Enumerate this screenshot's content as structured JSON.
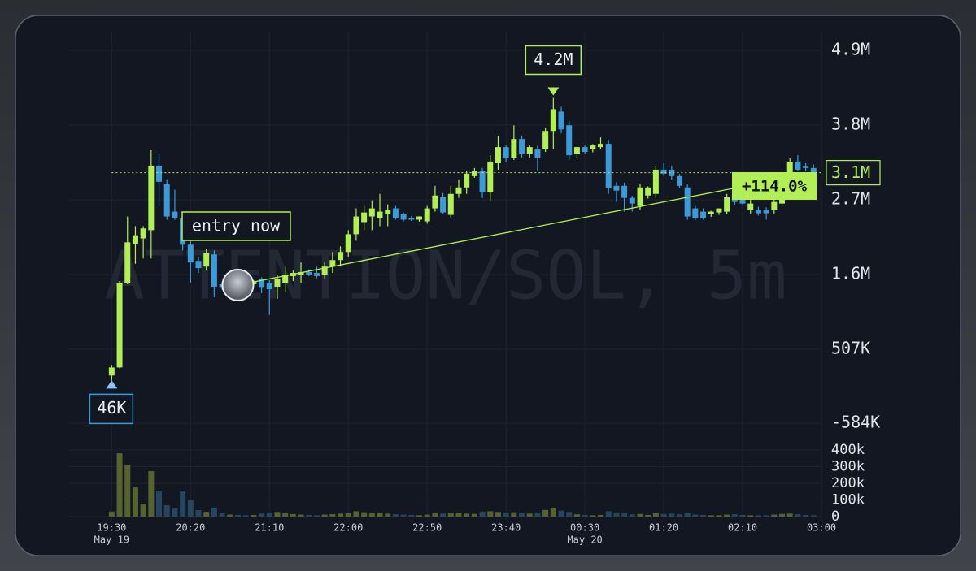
{
  "chart_data": {
    "type": "candlestick",
    "watermark": "ATTENTION/SOL, 5m",
    "up_color": "#b2ee55",
    "down_color": "#3d9ad8",
    "volume_up_color": "#56632e",
    "volume_down_color": "#264660",
    "open": [
      119000,
      237000,
      1483000,
      2050000,
      2134000,
      2255000,
      3204000,
      2930000,
      2527000,
      2432000,
      2041000,
      1803000,
      1720000,
      1898000,
      1460000,
      1420000,
      1480000,
      1540000,
      1460000,
      1540000,
      1483000,
      1424000,
      1483000,
      1580000,
      1602000,
      1638000,
      1626000,
      1602000,
      1720000,
      1815000,
      1934000,
      2195000,
      2373000,
      2456000,
      2432000,
      2491000,
      2575000,
      2491000,
      2432000,
      2409000,
      2385000,
      2575000,
      2740000,
      2480000,
      2788000,
      2883000,
      3049000,
      3121000,
      2812000,
      3239000,
      3476000,
      3322000,
      3595000,
      3381000,
      3441000,
      3441000,
      3714000,
      3998000,
      3797000,
      3381000,
      3476000,
      3441000,
      3476000,
      3524000,
      2907000,
      2907000,
      2729000,
      2610000,
      2764000,
      2788000,
      3144000,
      3144000,
      3049000,
      2883000,
      2575000,
      2527000,
      2491000,
      2515000,
      2527000,
      2788000,
      2741000,
      2551000,
      2551000,
      2551000,
      2551000,
      2646000,
      3025000,
      3263000,
      3200000,
      3168000
    ],
    "high": [
      273000,
      1507000,
      2456000,
      2314000,
      2314000,
      3429000,
      3381000,
      3002000,
      2848000,
      2527000,
      2100000,
      1863000,
      1981000,
      1958000,
      1490000,
      1500000,
      1500000,
      1560000,
      1520000,
      1560000,
      1520000,
      1602000,
      1720000,
      1661000,
      1780000,
      1680000,
      1720000,
      1780000,
      1934000,
      2017000,
      2255000,
      2575000,
      2610000,
      2693000,
      2788000,
      2634000,
      2610000,
      2515000,
      2460000,
      2460000,
      2610000,
      2907000,
      2800000,
      2907000,
      3002000,
      3121000,
      3168000,
      3168000,
      3357000,
      3642000,
      3500000,
      3797000,
      3642000,
      3500000,
      3500000,
      3761000,
      4200000,
      4069000,
      3856000,
      3480000,
      3500000,
      3520000,
      3619000,
      3583000,
      2960000,
      2955000,
      2760000,
      2931000,
      2900000,
      3204000,
      3240000,
      3204000,
      3080000,
      2931000,
      2610000,
      2575000,
      2540000,
      2560000,
      2788000,
      2848000,
      2812000,
      2700000,
      2600000,
      2590000,
      2717000,
      2907000,
      3310000,
      3357000,
      3240000,
      3220000
    ],
    "low": [
      46000,
      225000,
      1459000,
      1760000,
      1839000,
      1839000,
      2610000,
      2409000,
      2409000,
      1958000,
      1483000,
      1626000,
      1661000,
      1270000,
      1380000,
      1400000,
      1410000,
      1430000,
      1440000,
      1330000,
      1009000,
      1246000,
      1341000,
      1507000,
      1483000,
      1580000,
      1550000,
      1543000,
      1626000,
      1720000,
      1863000,
      2100000,
      2255000,
      2255000,
      2314000,
      2314000,
      2409000,
      2385000,
      2390000,
      2380000,
      2350000,
      2527000,
      2500000,
      2440000,
      2729000,
      2788000,
      3025000,
      2729000,
      2693000,
      3144000,
      3263000,
      3286000,
      3322000,
      3322000,
      3121000,
      3405000,
      3441000,
      3678000,
      3286000,
      3322000,
      3380000,
      3400000,
      3440000,
      2788000,
      2670000,
      2527000,
      2527000,
      2551000,
      2720000,
      2729000,
      3050000,
      3000000,
      2880000,
      2409000,
      2400000,
      2409000,
      2450000,
      2480000,
      2490000,
      2620000,
      2620000,
      2500000,
      2470000,
      2410000,
      2500000,
      2620000,
      2960000,
      3130000,
      3120000,
      3060000
    ],
    "close": [
      237000,
      1483000,
      2076000,
      2180000,
      2280000,
      3204000,
      2966000,
      2456000,
      2432000,
      2041000,
      1780000,
      1697000,
      1922000,
      1424000,
      1420000,
      1480000,
      1440000,
      1460000,
      1500000,
      1420000,
      1388000,
      1543000,
      1602000,
      1626000,
      1638000,
      1602000,
      1580000,
      1720000,
      1815000,
      1934000,
      2195000,
      2456000,
      2515000,
      2575000,
      2527000,
      2551000,
      2432000,
      2409000,
      2409000,
      2456000,
      2575000,
      2764000,
      2515000,
      2788000,
      2883000,
      3085000,
      3121000,
      2812000,
      3263000,
      3476000,
      3310000,
      3595000,
      3381000,
      3476000,
      3322000,
      3714000,
      4034000,
      3737000,
      3357000,
      3476000,
      3405000,
      3500000,
      3524000,
      2871000,
      2836000,
      2729000,
      2646000,
      2883000,
      2883000,
      3144000,
      3085000,
      3049000,
      2907000,
      2456000,
      2432000,
      2432000,
      2527000,
      2575000,
      2741000,
      2670000,
      2646000,
      2646000,
      2503000,
      2503000,
      2670000,
      2883000,
      3263000,
      3144000,
      3168000,
      3100000
    ],
    "volume": [
      30000,
      380000,
      312000,
      175000,
      78000,
      273000,
      151000,
      68000,
      49000,
      151000,
      102000,
      39000,
      29000,
      54000,
      20000,
      12000,
      10000,
      8000,
      10000,
      18000,
      22000,
      28000,
      20000,
      15000,
      12000,
      10000,
      8000,
      12000,
      15000,
      18000,
      20000,
      32000,
      26000,
      22000,
      24000,
      18000,
      14000,
      12000,
      10000,
      8000,
      12000,
      20000,
      18000,
      22000,
      24000,
      18000,
      16000,
      30000,
      32000,
      28000,
      22000,
      26000,
      20000,
      18000,
      24000,
      40000,
      54000,
      36000,
      28000,
      14000,
      10000,
      8000,
      10000,
      32000,
      22000,
      20000,
      14000,
      16000,
      10000,
      20000,
      16000,
      18000,
      14000,
      20000,
      12000,
      10000,
      8000,
      8000,
      12000,
      14000,
      10000,
      8000,
      8000,
      8000,
      12000,
      16000,
      18000,
      14000,
      10000,
      8000
    ],
    "xlim": [
      -5.4,
      90
    ],
    "xticks": [
      {
        "value": 0,
        "label": "19:30",
        "date": "May 19"
      },
      {
        "value": 10,
        "label": "20:20"
      },
      {
        "value": 20,
        "label": "21:10"
      },
      {
        "value": 30,
        "label": "22:00"
      },
      {
        "value": 40,
        "label": "22:50"
      },
      {
        "value": 50,
        "label": "23:40"
      },
      {
        "value": 60,
        "label": "00:30",
        "date": "May 20"
      },
      {
        "value": 70,
        "label": "01:20"
      },
      {
        "value": 80,
        "label": "02:10"
      },
      {
        "value": 90,
        "label": "03:00"
      }
    ],
    "ylim": [
      -809000,
      5161000
    ],
    "yticks": [
      {
        "value": 4900000,
        "label": "4.9M"
      },
      {
        "value": 3800000,
        "label": "3.8M"
      },
      {
        "value": 2700000,
        "label": "2.7M"
      },
      {
        "value": 1600000,
        "label": "1.6M"
      },
      {
        "value": 507000,
        "label": "507K"
      },
      {
        "value": -584000,
        "label": "-584K"
      }
    ],
    "volume_ylim": [
      0,
      400000
    ],
    "volume_yticks": [
      {
        "value": 400000,
        "label": "400k"
      },
      {
        "value": 300000,
        "label": "300k"
      },
      {
        "value": 200000,
        "label": "200k"
      },
      {
        "value": 100000,
        "label": "100k"
      },
      0
    ],
    "grid": true,
    "last_price": {
      "value": 3100000,
      "label": "3.1M"
    },
    "annotations": {
      "high": {
        "value": 4200000,
        "label": "4.2M"
      },
      "low": {
        "value": 46000,
        "label": "46K"
      }
    },
    "entry": {
      "label": "entry now",
      "price": 1449000
    },
    "change_label": "+114.0%"
  }
}
